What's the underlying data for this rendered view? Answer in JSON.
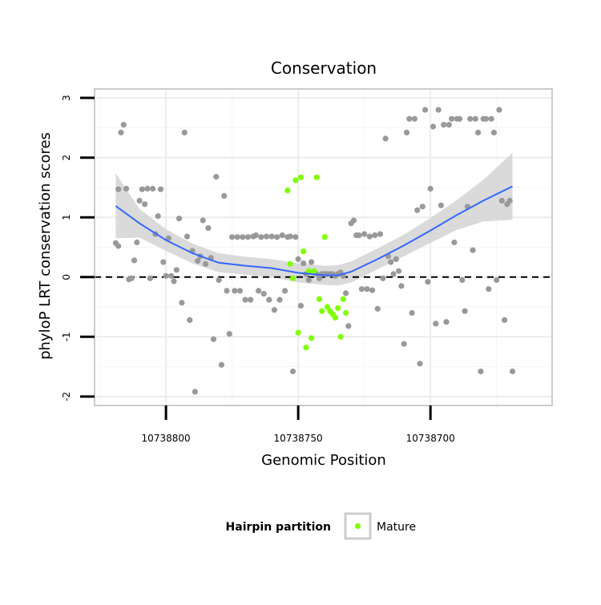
{
  "chart_data": {
    "type": "scatter",
    "title": "Conservation",
    "xlabel": "Genomic Position",
    "ylabel": "phyloP LRT conservation scores",
    "x_reversed": true,
    "xlim": [
      10738827,
      10738654
    ],
    "ylim": [
      -2.15,
      3.15
    ],
    "x_ticks": [
      10738800,
      10738750,
      10738700
    ],
    "x_tick_labels": [
      "10738800",
      "10738750",
      "10738700"
    ],
    "y_ticks": [
      -2,
      -1,
      0,
      1,
      2,
      3
    ],
    "y_tick_labels": [
      "-2",
      "-1",
      "0",
      "1",
      "2",
      "3"
    ],
    "reference_line_y": 0,
    "grid": true,
    "legend": {
      "title": "Hairpin partition",
      "entries": [
        "Mature"
      ],
      "placement": "bottom"
    },
    "colors": {
      "other_points": "#999999",
      "mature_points": "#7fff00",
      "smooth_line": "#3366ff",
      "confidence_band": "#d3d3d3",
      "panel_border": "#cccccc"
    },
    "series": [
      {
        "group": "other",
        "points": [
          [
            10738819,
            0.57
          ],
          [
            10738818,
            1.47
          ],
          [
            10738818,
            0.52
          ],
          [
            10738817,
            2.42
          ],
          [
            10738816,
            2.55
          ],
          [
            10738815,
            1.48
          ],
          [
            10738814,
            -0.04
          ],
          [
            10738813,
            -0.02
          ],
          [
            10738812,
            0.28
          ],
          [
            10738811,
            0.58
          ],
          [
            10738810,
            1.28
          ],
          [
            10738809,
            1.47
          ],
          [
            10738808,
            1.22
          ],
          [
            10738807,
            1.48
          ],
          [
            10738806,
            -0.02
          ],
          [
            10738805,
            1.48
          ],
          [
            10738804,
            0.72
          ],
          [
            10738803,
            1.02
          ],
          [
            10738802,
            1.47
          ],
          [
            10738801,
            0.25
          ],
          [
            10738800,
            0.02
          ],
          [
            10738799,
            0.65
          ],
          [
            10738798,
            0.02
          ],
          [
            10738797,
            -0.07
          ],
          [
            10738796,
            0.12
          ],
          [
            10738795,
            0.98
          ],
          [
            10738794,
            -0.43
          ],
          [
            10738793,
            2.42
          ],
          [
            10738792,
            0.68
          ],
          [
            10738791,
            -0.72
          ],
          [
            10738790,
            0.44
          ],
          [
            10738789,
            -1.92
          ],
          [
            10738788,
            0.27
          ],
          [
            10738787,
            0.35
          ],
          [
            10738786,
            0.95
          ],
          [
            10738785,
            0.22
          ],
          [
            10738784,
            0.82
          ],
          [
            10738783,
            0.32
          ],
          [
            10738782,
            -1.04
          ],
          [
            10738781,
            1.68
          ],
          [
            10738780,
            -0.05
          ],
          [
            10738779,
            -1.47
          ],
          [
            10738778,
            1.36
          ],
          [
            10738777,
            -0.23
          ],
          [
            10738776,
            -0.95
          ],
          [
            10738775,
            0.67
          ],
          [
            10738774,
            -0.23
          ],
          [
            10738773,
            0.67
          ],
          [
            10738772,
            -0.23
          ],
          [
            10738771,
            0.67
          ],
          [
            10738770,
            -0.38
          ],
          [
            10738769,
            0.67
          ],
          [
            10738768,
            -0.38
          ],
          [
            10738767,
            0.68
          ],
          [
            10738766,
            0.7
          ],
          [
            10738765,
            -0.23
          ],
          [
            10738764,
            0.67
          ],
          [
            10738763,
            -0.28
          ],
          [
            10738762,
            0.68
          ],
          [
            10738761,
            -0.38
          ],
          [
            10738760,
            0.68
          ],
          [
            10738759,
            -0.55
          ],
          [
            10738758,
            0.67
          ],
          [
            10738757,
            -0.38
          ],
          [
            10738756,
            0.7
          ],
          [
            10738755,
            -0.23
          ],
          [
            10738754,
            0.67
          ],
          [
            10738753,
            0.68
          ],
          [
            10738752,
            -1.58
          ],
          [
            10738751,
            0.67
          ],
          [
            10738750,
            0.3
          ],
          [
            10738749,
            -0.48
          ],
          [
            10738748,
            0.23
          ],
          [
            10738747,
            0.05
          ],
          [
            10738746,
            -0.05
          ],
          [
            10738745,
            0.25
          ],
          [
            10738743,
            0.05
          ],
          [
            10738742,
            -0.02
          ],
          [
            10738741,
            0.05
          ],
          [
            10738740,
            0.05
          ],
          [
            10738739,
            0.05
          ],
          [
            10738738,
            0.05
          ],
          [
            10738737,
            0.05
          ],
          [
            10738736,
            0.02
          ],
          [
            10738735,
            0.05
          ],
          [
            10738734,
            0.08
          ],
          [
            10738733,
            0.02
          ],
          [
            10738732,
            -0.27
          ],
          [
            10738731,
            -0.82
          ],
          [
            10738730,
            0.9
          ],
          [
            10738729,
            0.95
          ],
          [
            10738728,
            0.7
          ],
          [
            10738727,
            0.7
          ],
          [
            10738726,
            -0.2
          ],
          [
            10738725,
            0.72
          ],
          [
            10738724,
            -0.2
          ],
          [
            10738723,
            0.68
          ],
          [
            10738722,
            -0.22
          ],
          [
            10738721,
            0.7
          ],
          [
            10738720,
            -0.53
          ],
          [
            10738719,
            0.72
          ],
          [
            10738718,
            -0.02
          ],
          [
            10738717,
            2.32
          ],
          [
            10738716,
            0.35
          ],
          [
            10738715,
            0.25
          ],
          [
            10738714,
            0.05
          ],
          [
            10738713,
            0.3
          ],
          [
            10738712,
            0.1
          ],
          [
            10738711,
            -0.15
          ],
          [
            10738710,
            -1.12
          ],
          [
            10738709,
            2.42
          ],
          [
            10738708,
            2.65
          ],
          [
            10738707,
            -0.6
          ],
          [
            10738706,
            2.65
          ],
          [
            10738705,
            1.12
          ],
          [
            10738704,
            -1.45
          ],
          [
            10738703,
            1.18
          ],
          [
            10738702,
            2.8
          ],
          [
            10738701,
            -0.08
          ],
          [
            10738700,
            1.48
          ],
          [
            10738699,
            2.52
          ],
          [
            10738698,
            -0.78
          ],
          [
            10738697,
            2.8
          ],
          [
            10738696,
            1.2
          ],
          [
            10738695,
            2.55
          ],
          [
            10738694,
            -0.75
          ],
          [
            10738693,
            2.55
          ],
          [
            10738692,
            2.65
          ],
          [
            10738691,
            0.58
          ],
          [
            10738690,
            2.65
          ],
          [
            10738689,
            2.65
          ],
          [
            10738688,
            -0.05
          ],
          [
            10738687,
            -0.57
          ],
          [
            10738686,
            1.18
          ],
          [
            10738685,
            2.65
          ],
          [
            10738684,
            0.45
          ],
          [
            10738683,
            2.65
          ],
          [
            10738682,
            2.42
          ],
          [
            10738681,
            -1.58
          ],
          [
            10738680,
            2.65
          ],
          [
            10738679,
            2.65
          ],
          [
            10738678,
            -0.2
          ],
          [
            10738677,
            2.65
          ],
          [
            10738676,
            2.42
          ],
          [
            10738675,
            -0.05
          ],
          [
            10738674,
            2.8
          ],
          [
            10738673,
            1.28
          ],
          [
            10738672,
            -0.72
          ],
          [
            10738671,
            1.22
          ],
          [
            10738670,
            1.28
          ],
          [
            10738669,
            -1.58
          ]
        ]
      },
      {
        "group": "Mature",
        "points": [
          [
            10738754,
            1.45
          ],
          [
            10738753,
            0.22
          ],
          [
            10738752,
            -0.02
          ],
          [
            10738751,
            1.62
          ],
          [
            10738750,
            -0.93
          ],
          [
            10738749,
            1.67
          ],
          [
            10738748,
            0.43
          ],
          [
            10738747,
            -1.18
          ],
          [
            10738746,
            0.1
          ],
          [
            10738745,
            -1.02
          ],
          [
            10738744,
            0.1
          ],
          [
            10738743,
            1.67
          ],
          [
            10738742,
            -0.37
          ],
          [
            10738741,
            -0.57
          ],
          [
            10738740,
            0.67
          ],
          [
            10738739,
            -0.5
          ],
          [
            10738738,
            -0.57
          ],
          [
            10738737,
            -0.62
          ],
          [
            10738736,
            -0.68
          ],
          [
            10738735,
            -0.52
          ],
          [
            10738734,
            -1.0
          ],
          [
            10738733,
            -0.37
          ],
          [
            10738732,
            -0.6
          ]
        ]
      }
    ],
    "smooth_line": {
      "method": "loess",
      "x": [
        10738819,
        10738810,
        10738800,
        10738790,
        10738780,
        10738770,
        10738760,
        10738750,
        10738740,
        10738735,
        10738730,
        10738720,
        10738710,
        10738700,
        10738690,
        10738680,
        10738669
      ],
      "y": [
        1.19,
        0.9,
        0.62,
        0.4,
        0.24,
        0.19,
        0.15,
        0.07,
        0.03,
        0.03,
        0.09,
        0.3,
        0.53,
        0.78,
        1.04,
        1.28,
        1.52
      ],
      "ymin": [
        0.65,
        0.66,
        0.44,
        0.23,
        0.08,
        0.04,
        0.0,
        -0.09,
        -0.13,
        -0.14,
        -0.09,
        0.13,
        0.35,
        0.57,
        0.79,
        0.93,
        0.96
      ],
      "ymax": [
        1.74,
        1.14,
        0.8,
        0.56,
        0.4,
        0.34,
        0.3,
        0.23,
        0.19,
        0.2,
        0.26,
        0.48,
        0.71,
        0.99,
        1.29,
        1.63,
        2.08
      ]
    }
  }
}
